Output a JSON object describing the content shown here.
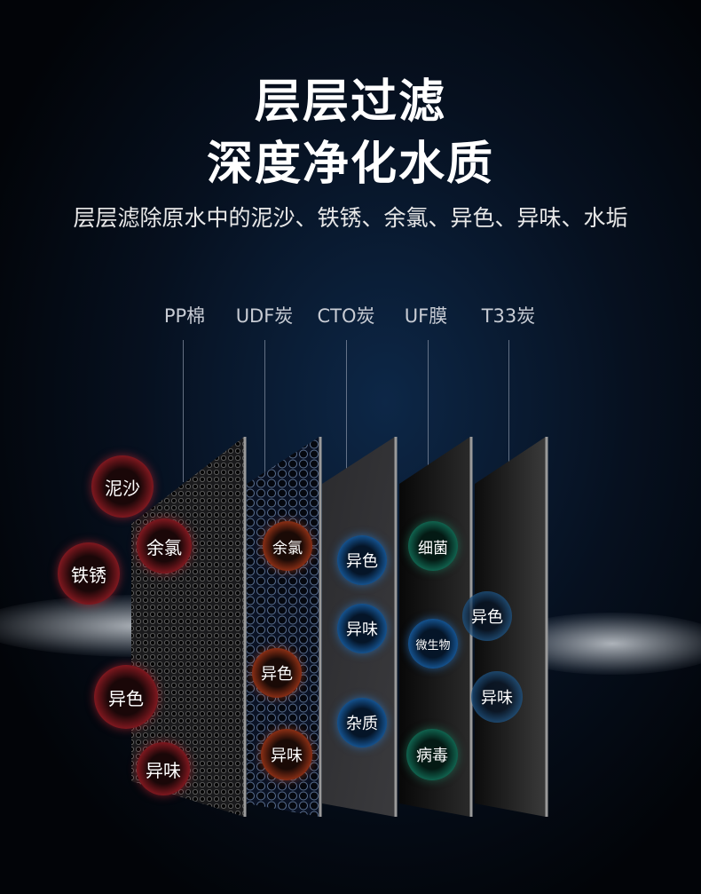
{
  "headline": [
    "层层过滤",
    "深度净化水质"
  ],
  "subtitle": "层层滤除原水中的泥沙、铁锈、余氯、异色、异味、水垢",
  "layers": [
    {
      "name": "PP棉",
      "removes": [
        "泥沙",
        "铁锈",
        "余氯",
        "异色",
        "异味"
      ],
      "color": "#b0202a"
    },
    {
      "name": "UDF炭",
      "removes": [
        "余氯",
        "异色",
        "异味"
      ],
      "color": "#c0401c"
    },
    {
      "name": "CTO炭",
      "removes": [
        "异色",
        "异味",
        "杂质"
      ],
      "color": "#1c6fbf"
    },
    {
      "name": "UF膜",
      "removes": [
        "细菌",
        "微生物",
        "病毒"
      ],
      "color": "#16856a"
    },
    {
      "name": "T33炭",
      "removes": [
        "异色",
        "异味"
      ],
      "color": "#2c6ea8"
    }
  ]
}
